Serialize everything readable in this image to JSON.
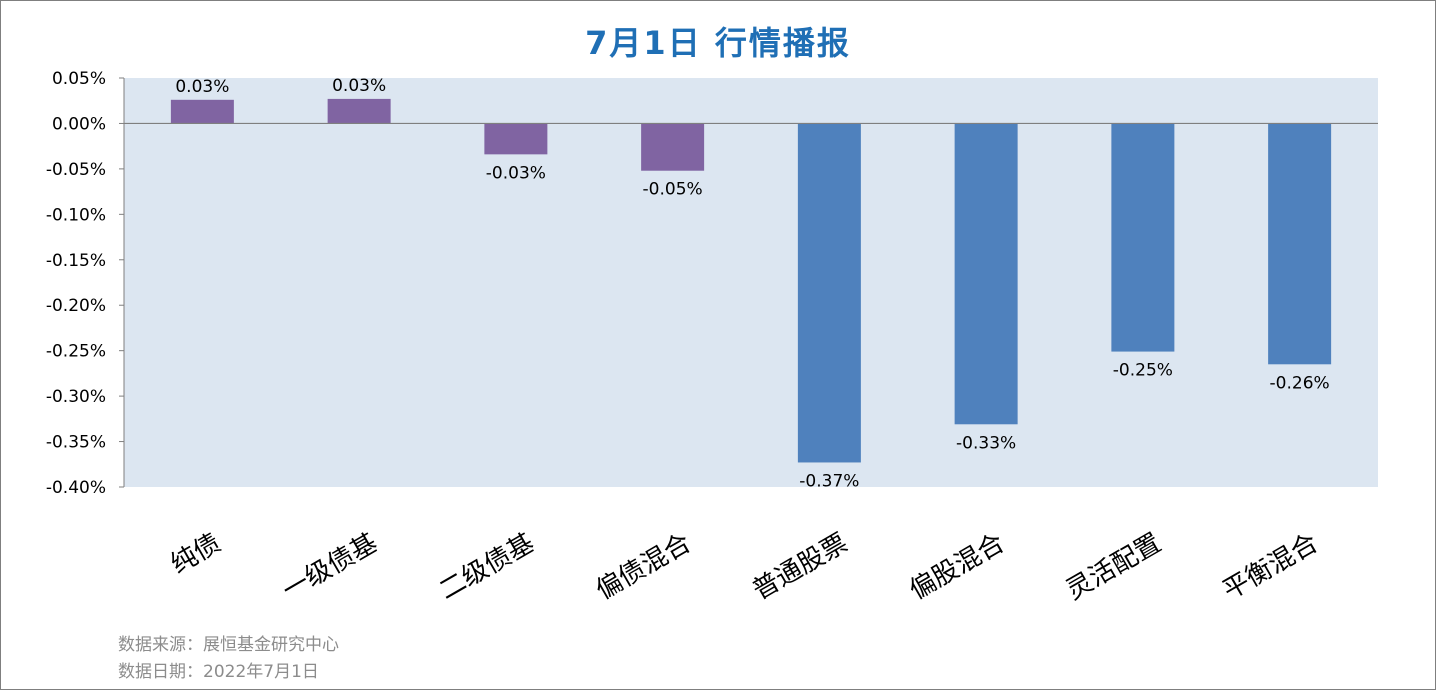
{
  "header": {
    "title": "7月1日  行情播报"
  },
  "footer": {
    "source": "数据来源：展恒基金研究中心",
    "date": "数据日期：2022年7月1日"
  },
  "colors": {
    "plot_background": "#dce6f1",
    "bond_bar": "#8064a2",
    "equity_bar": "#4f81bd",
    "axis": "#7f7f7f",
    "title": "#1f6fb5"
  },
  "chart_data": {
    "type": "bar",
    "title": "7月1日  行情播报",
    "xlabel": "",
    "ylabel": "",
    "ylim": [
      -0.4,
      0.05
    ],
    "yticks": [
      "0.05%",
      "0.00%",
      "-0.05%",
      "-0.10%",
      "-0.15%",
      "-0.20%",
      "-0.25%",
      "-0.30%",
      "-0.35%",
      "-0.40%"
    ],
    "ytick_values": [
      0.05,
      0.0,
      -0.05,
      -0.1,
      -0.15,
      -0.2,
      -0.25,
      -0.3,
      -0.35,
      -0.4
    ],
    "grid": false,
    "categories": [
      "纯债",
      "一级债基",
      "二级债基",
      "偏债混合",
      "普通股票",
      "偏股混合",
      "灵活配置",
      "平衡混合"
    ],
    "values": [
      0.026,
      0.027,
      -0.034,
      -0.052,
      -0.373,
      -0.331,
      -0.251,
      -0.265
    ],
    "labels": [
      "0.03%",
      "0.03%",
      "-0.03%",
      "-0.05%",
      "-0.37%",
      "-0.33%",
      "-0.25%",
      "-0.26%"
    ],
    "bar_groups": [
      "bond",
      "bond",
      "bond",
      "bond",
      "equity",
      "equity",
      "equity",
      "equity"
    ]
  }
}
